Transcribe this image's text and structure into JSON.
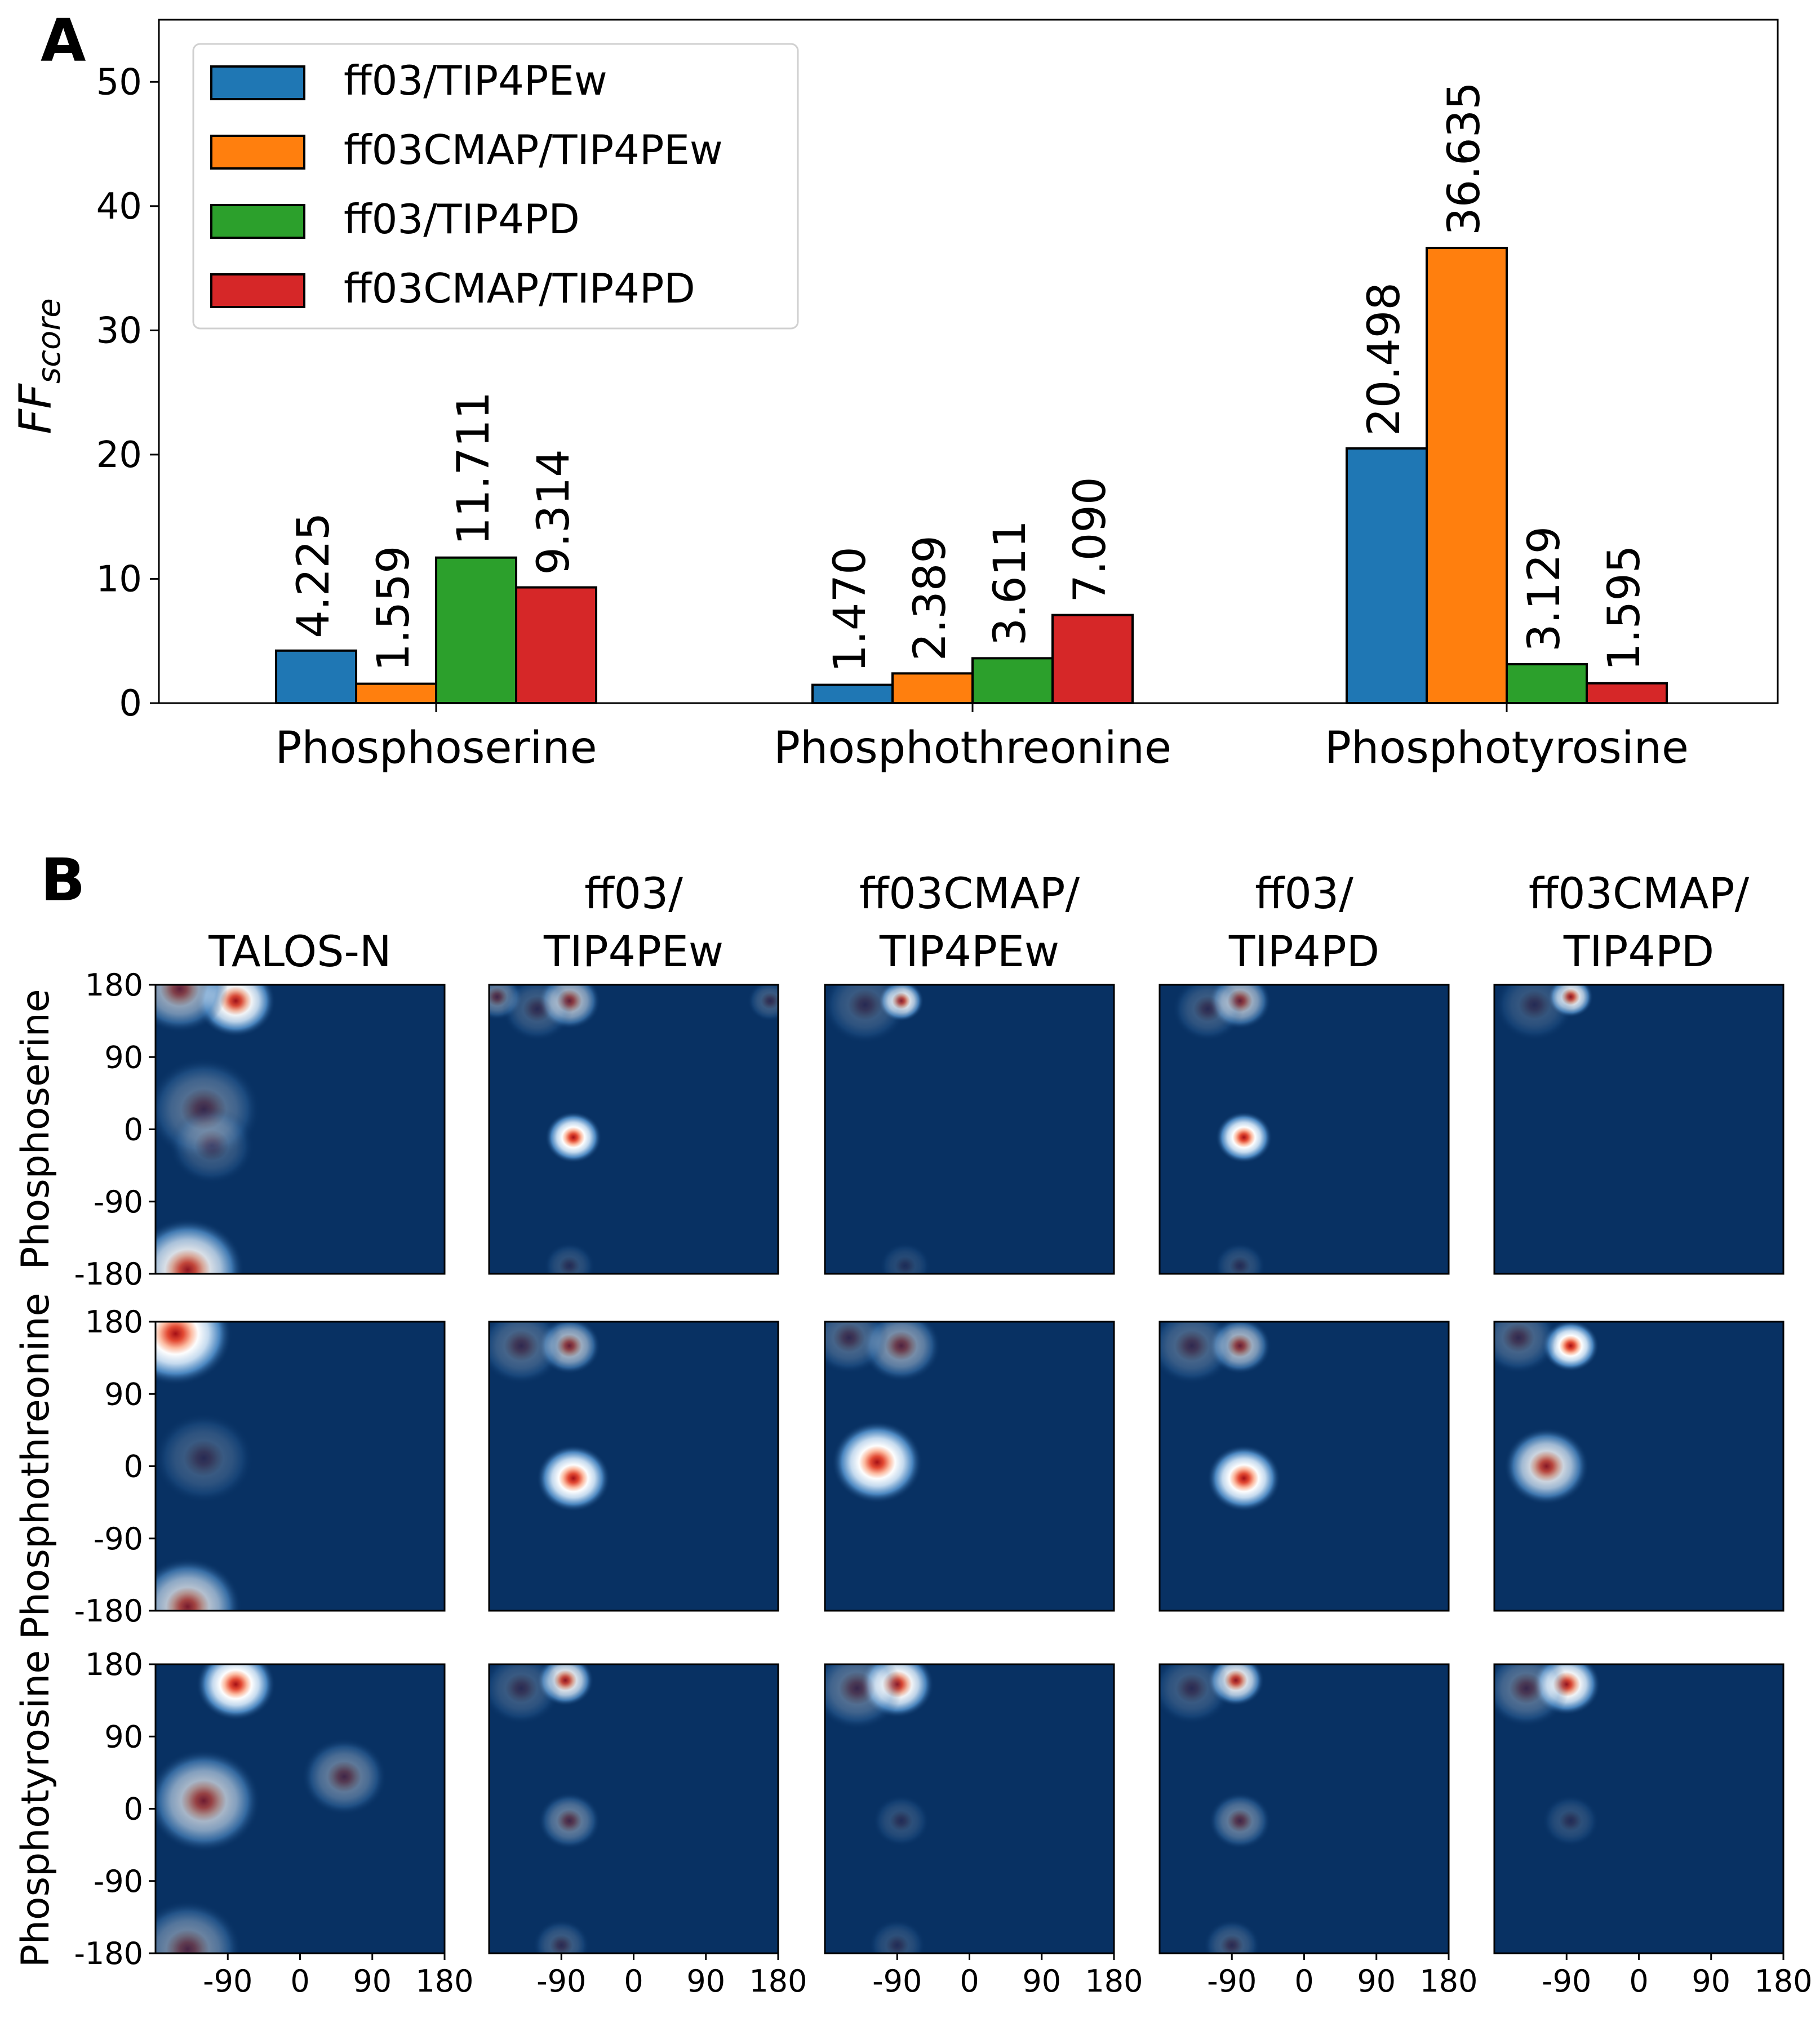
{
  "panel_labels": {
    "a": "A",
    "b": "B"
  },
  "colors": {
    "ff03_tip4pew": "#1f77b4",
    "ff03cmap_tip4pew": "#ff7f0e",
    "ff03_tip4pd": "#2ca02c",
    "ff03cmap_tip4pd": "#d62728",
    "heatmap_bg": "#083163"
  },
  "chart_data": [
    {
      "type": "bar",
      "title": "",
      "xlabel": "",
      "ylabel": "FFscore",
      "ylabel_main": "FF",
      "ylabel_sub": "score",
      "ylim": [
        0,
        55
      ],
      "yticks": [
        0,
        10,
        20,
        30,
        40,
        50
      ],
      "legend_position": "top-left",
      "categories": [
        "Phosphoserine",
        "Phosphothreonine",
        "Phosphotyrosine"
      ],
      "series": [
        {
          "name": "ff03/TIP4PEw",
          "values": [
            4.225,
            1.47,
            20.498
          ],
          "labels": [
            "4.225",
            "1.470",
            "20.498"
          ]
        },
        {
          "name": "ff03CMAP/TIP4PEw",
          "values": [
            1.559,
            2.389,
            36.635
          ],
          "labels": [
            "1.559",
            "2.389",
            "36.635"
          ]
        },
        {
          "name": "ff03/TIP4PD",
          "values": [
            11.711,
            3.611,
            3.129
          ],
          "labels": [
            "11.711",
            "3.611",
            "3.129"
          ]
        },
        {
          "name": "ff03CMAP/TIP4PD",
          "values": [
            9.314,
            7.09,
            1.595
          ],
          "labels": [
            "9.314",
            "7.090",
            "1.595"
          ]
        }
      ]
    },
    {
      "type": "heatmap",
      "description_axes": "phi (x) vs psi (y) Ramachandran density, range -180 to 180",
      "xlim": [
        -180,
        180
      ],
      "ylim": [
        -180,
        180
      ],
      "xticks": [
        -90,
        0,
        90,
        180
      ],
      "yticks": [
        180,
        90,
        0,
        -90,
        -180
      ],
      "columns": [
        {
          "line1": "",
          "line2": "TALOS-N"
        },
        {
          "line1": "ff03/",
          "line2": "TIP4PEw"
        },
        {
          "line1": "ff03CMAP/",
          "line2": "TIP4PEw"
        },
        {
          "line1": "ff03/",
          "line2": "TIP4PD"
        },
        {
          "line1": "ff03CMAP/",
          "line2": "TIP4PD"
        }
      ],
      "rows": [
        "Phosphoserine",
        "Phosphothreonine",
        "Phosphotyrosine"
      ],
      "hotspots": [
        [
          [
            {
              "phi": -80,
              "psi": 160,
              "s": 0.95,
              "r": 28
            },
            {
              "phi": -150,
              "psi": 175,
              "s": 0.55,
              "r": 34
            },
            {
              "phi": -140,
              "psi": -175,
              "s": 0.85,
              "r": 40
            },
            {
              "phi": -120,
              "psi": 25,
              "s": 0.3,
              "r": 40
            },
            {
              "phi": -110,
              "psi": -20,
              "s": 0.2,
              "r": 30
            }
          ],
          [
            {
              "phi": -80,
              "psi": 160,
              "s": 0.6,
              "r": 22
            },
            {
              "phi": -75,
              "psi": -10,
              "s": 1.0,
              "r": 20
            },
            {
              "phi": -170,
              "psi": 165,
              "s": 0.35,
              "r": 18
            },
            {
              "phi": -120,
              "psi": 150,
              "s": 0.2,
              "r": 25
            },
            {
              "phi": 170,
              "psi": 160,
              "s": 0.2,
              "r": 16
            },
            {
              "phi": -80,
              "psi": -170,
              "s": 0.15,
              "r": 18
            }
          ],
          [
            {
              "phi": -85,
              "psi": 160,
              "s": 0.85,
              "r": 16
            },
            {
              "phi": -130,
              "psi": 155,
              "s": 0.2,
              "r": 30
            },
            {
              "phi": -80,
              "psi": -170,
              "s": 0.12,
              "r": 18
            }
          ],
          [
            {
              "phi": -80,
              "psi": 160,
              "s": 0.6,
              "r": 22
            },
            {
              "phi": -75,
              "psi": -10,
              "s": 1.0,
              "r": 20
            },
            {
              "phi": -120,
              "psi": 150,
              "s": 0.2,
              "r": 25
            },
            {
              "phi": -80,
              "psi": -170,
              "s": 0.15,
              "r": 18
            }
          ],
          [
            {
              "phi": -85,
              "psi": 165,
              "s": 0.85,
              "r": 16
            },
            {
              "phi": -130,
              "psi": 155,
              "s": 0.18,
              "r": 28
            }
          ]
        ],
        [
          [
            {
              "phi": -155,
              "psi": 165,
              "s": 1.0,
              "r": 40
            },
            {
              "phi": -140,
              "psi": -175,
              "s": 0.7,
              "r": 38
            },
            {
              "phi": -120,
              "psi": 10,
              "s": 0.2,
              "r": 35
            }
          ],
          [
            {
              "phi": -80,
              "psi": 150,
              "s": 0.6,
              "r": 22
            },
            {
              "phi": -75,
              "psi": -15,
              "s": 1.0,
              "r": 26
            },
            {
              "phi": -140,
              "psi": 150,
              "s": 0.25,
              "r": 30
            }
          ],
          [
            {
              "phi": -115,
              "psi": 5,
              "s": 1.0,
              "r": 32
            },
            {
              "phi": -85,
              "psi": 150,
              "s": 0.45,
              "r": 28
            },
            {
              "phi": -150,
              "psi": 160,
              "s": 0.25,
              "r": 28
            }
          ],
          [
            {
              "phi": -80,
              "psi": 150,
              "s": 0.6,
              "r": 22
            },
            {
              "phi": -75,
              "psi": -15,
              "s": 1.0,
              "r": 26
            },
            {
              "phi": -140,
              "psi": 150,
              "s": 0.25,
              "r": 30
            }
          ],
          [
            {
              "phi": -85,
              "psi": 150,
              "s": 1.0,
              "r": 20
            },
            {
              "phi": -115,
              "psi": 0,
              "s": 0.8,
              "r": 30
            },
            {
              "phi": -150,
              "psi": 160,
              "s": 0.25,
              "r": 28
            }
          ]
        ],
        [
          [
            {
              "phi": -80,
              "psi": 155,
              "s": 1.0,
              "r": 28
            },
            {
              "phi": -120,
              "psi": 10,
              "s": 0.65,
              "r": 40
            },
            {
              "phi": -140,
              "psi": -175,
              "s": 0.4,
              "r": 38
            },
            {
              "phi": 55,
              "psi": 40,
              "s": 0.35,
              "r": 30
            }
          ],
          [
            {
              "phi": -85,
              "psi": 160,
              "s": 0.85,
              "r": 20
            },
            {
              "phi": -80,
              "psi": -15,
              "s": 0.35,
              "r": 22
            },
            {
              "phi": -90,
              "psi": -170,
              "s": 0.2,
              "r": 20
            },
            {
              "phi": -140,
              "psi": 150,
              "s": 0.2,
              "r": 28
            }
          ],
          [
            {
              "phi": -90,
              "psi": 155,
              "s": 0.95,
              "r": 26
            },
            {
              "phi": -140,
              "psi": 150,
              "s": 0.3,
              "r": 32
            },
            {
              "phi": -85,
              "psi": -15,
              "s": 0.15,
              "r": 20
            },
            {
              "phi": -90,
              "psi": -170,
              "s": 0.15,
              "r": 20
            }
          ],
          [
            {
              "phi": -85,
              "psi": 160,
              "s": 0.85,
              "r": 20
            },
            {
              "phi": -80,
              "psi": -15,
              "s": 0.35,
              "r": 22
            },
            {
              "phi": -90,
              "psi": -170,
              "s": 0.2,
              "r": 20
            },
            {
              "phi": -140,
              "psi": 150,
              "s": 0.2,
              "r": 28
            }
          ],
          [
            {
              "phi": -90,
              "psi": 155,
              "s": 0.95,
              "r": 24
            },
            {
              "phi": -140,
              "psi": 150,
              "s": 0.3,
              "r": 30
            },
            {
              "phi": -85,
              "psi": -15,
              "s": 0.15,
              "r": 20
            }
          ]
        ]
      ]
    }
  ]
}
